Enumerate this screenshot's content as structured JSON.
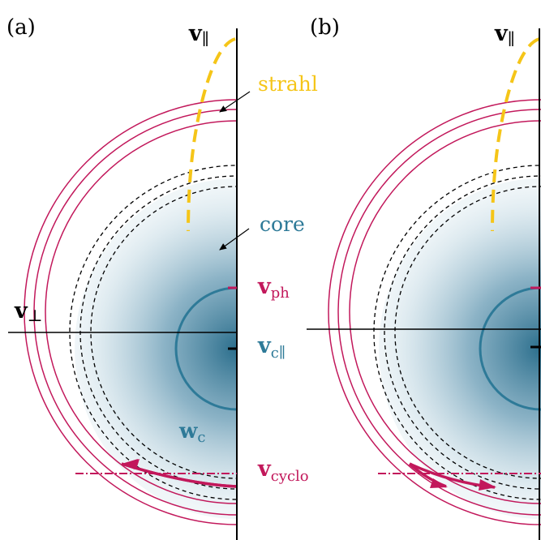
{
  "colors": {
    "magenta": "#C2185B",
    "teal": "#2E7A98",
    "yellow": "#F5C518",
    "core_dark": "#2B6E8C",
    "axis": "#000000"
  },
  "panels": [
    {
      "panel_label": "(a)",
      "v_par_main": "v",
      "v_par_sub": "∥",
      "v_perp_main": "v",
      "v_perp_sub": "⊥",
      "strahl_label": "strahl",
      "core_label": "core",
      "vph_main": "v",
      "vph_sub": "ph",
      "vc_main": "v",
      "vc_sub": "c∥",
      "wc_main": "w",
      "wc_sub": "c",
      "vcyclo_main": "v",
      "vcyclo_sub": "cyclo"
    },
    {
      "panel_label": "(b)",
      "v_par_main": "v",
      "v_par_sub": "∥"
    }
  ]
}
